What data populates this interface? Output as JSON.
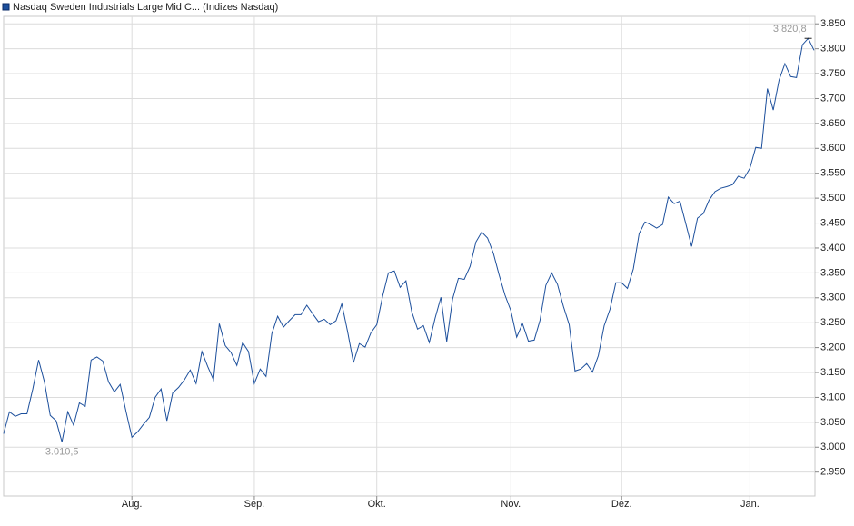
{
  "chart_data": {
    "type": "line",
    "series": [
      {
        "name": "Nasdaq Sweden Industrials Large Mid C... (Indizes Nasdaq)",
        "color": "#1c4f9c",
        "values": [
          3027,
          3071,
          3062,
          3067,
          3067,
          3117,
          3175,
          3131,
          3064,
          3053,
          3010.5,
          3071,
          3044,
          3089,
          3082,
          3175,
          3181,
          3173,
          3131,
          3111,
          3126,
          3071,
          3020,
          3031,
          3046,
          3060,
          3100,
          3117,
          3053,
          3109,
          3120,
          3135,
          3155,
          3128,
          3192,
          3162,
          3135,
          3248,
          3204,
          3190,
          3164,
          3210,
          3192,
          3128,
          3157,
          3142,
          3228,
          3263,
          3241,
          3254,
          3266,
          3266,
          3285,
          3268,
          3252,
          3257,
          3246,
          3254,
          3288,
          3232,
          3170,
          3208,
          3201,
          3230,
          3246,
          3303,
          3350,
          3354,
          3321,
          3334,
          3272,
          3237,
          3244,
          3210,
          3259,
          3301,
          3212,
          3297,
          3339,
          3337,
          3363,
          3412,
          3432,
          3420,
          3389,
          3345,
          3305,
          3274,
          3221,
          3248,
          3213,
          3215,
          3255,
          3325,
          3350,
          3327,
          3283,
          3246,
          3153,
          3157,
          3168,
          3151,
          3184,
          3244,
          3277,
          3330,
          3330,
          3319,
          3358,
          3429,
          3452,
          3447,
          3440,
          3447,
          3502,
          3489,
          3494,
          3449,
          3403,
          3460,
          3469,
          3496,
          3513,
          3520,
          3523,
          3527,
          3544,
          3540,
          3560,
          3602,
          3600,
          3720,
          3677,
          3737,
          3770,
          3744,
          3742,
          3808,
          3820.8,
          3797
        ],
        "value_labels": [
          null,
          null,
          null,
          null,
          null,
          null,
          null,
          null,
          null,
          null,
          "3.010,5",
          null,
          null,
          null,
          null,
          null,
          null,
          null,
          null,
          null,
          null,
          null,
          null,
          null,
          null,
          null,
          null,
          null,
          null,
          null,
          null,
          null,
          null,
          null,
          null,
          null,
          null,
          null,
          null,
          null,
          null,
          null,
          null,
          null,
          null,
          null,
          null,
          null,
          null,
          null,
          null,
          null,
          null,
          null,
          null,
          null,
          null,
          null,
          null,
          null,
          null,
          null,
          null,
          null,
          null,
          null,
          null,
          null,
          null,
          null,
          null,
          null,
          null,
          null,
          null,
          null,
          null,
          null,
          null,
          null,
          null,
          null,
          null,
          null,
          null,
          null,
          null,
          null,
          null,
          null,
          null,
          null,
          null,
          null,
          null,
          null,
          null,
          null,
          null,
          null,
          null,
          null,
          null,
          null,
          null,
          null,
          null,
          null,
          null,
          null,
          null,
          null,
          null,
          null,
          null,
          null,
          null,
          null,
          null,
          null,
          null,
          null,
          null,
          null,
          null,
          null,
          null,
          null,
          null,
          null,
          null,
          null,
          null,
          null,
          null,
          null,
          null,
          null,
          "3.820,8",
          null
        ]
      }
    ],
    "categories": [
      null,
      null,
      null,
      null,
      null,
      null,
      null,
      null,
      null,
      null,
      null,
      null,
      null,
      null,
      null,
      null,
      null,
      null,
      null,
      null,
      null,
      null,
      "Aug.",
      null,
      null,
      null,
      null,
      null,
      null,
      null,
      null,
      null,
      null,
      null,
      null,
      null,
      null,
      null,
      null,
      null,
      null,
      null,
      null,
      "Sep.",
      null,
      null,
      null,
      null,
      null,
      null,
      null,
      null,
      null,
      null,
      null,
      null,
      null,
      null,
      null,
      null,
      null,
      null,
      null,
      null,
      "Okt.",
      null,
      null,
      null,
      null,
      null,
      null,
      null,
      null,
      null,
      null,
      null,
      null,
      null,
      null,
      null,
      null,
      null,
      null,
      null,
      null,
      null,
      null,
      "Nov.",
      null,
      null,
      null,
      null,
      null,
      null,
      null,
      null,
      null,
      null,
      null,
      null,
      null,
      null,
      null,
      null,
      null,
      null,
      "Dez.",
      null,
      null,
      null,
      null,
      null,
      null,
      null,
      null,
      null,
      null,
      null,
      null,
      null,
      null,
      null,
      null,
      null,
      null,
      null,
      null,
      null,
      "Jan.",
      null,
      null,
      null,
      null,
      null,
      null,
      null,
      null,
      null,
      null,
      null
    ],
    "ylim": [
      2902,
      3865
    ],
    "yticks": [
      {
        "value": 2950,
        "label": "2.950"
      },
      {
        "value": 3000,
        "label": "3.000"
      },
      {
        "value": 3050,
        "label": "3.050"
      },
      {
        "value": 3100,
        "label": "3.100"
      },
      {
        "value": 3150,
        "label": "3.150"
      },
      {
        "value": 3200,
        "label": "3.200"
      },
      {
        "value": 3250,
        "label": "3.250"
      },
      {
        "value": 3300,
        "label": "3.300"
      },
      {
        "value": 3350,
        "label": "3.350"
      },
      {
        "value": 3400,
        "label": "3.400"
      },
      {
        "value": 3450,
        "label": "3.450"
      },
      {
        "value": 3500,
        "label": "3.500"
      },
      {
        "value": 3550,
        "label": "3.550"
      },
      {
        "value": 3600,
        "label": "3.600"
      },
      {
        "value": 3650,
        "label": "3.650"
      },
      {
        "value": 3700,
        "label": "3.700"
      },
      {
        "value": 3750,
        "label": "3.750"
      },
      {
        "value": 3800,
        "label": "3.800"
      },
      {
        "value": 3850,
        "label": "3.850"
      }
    ],
    "grid": true
  }
}
